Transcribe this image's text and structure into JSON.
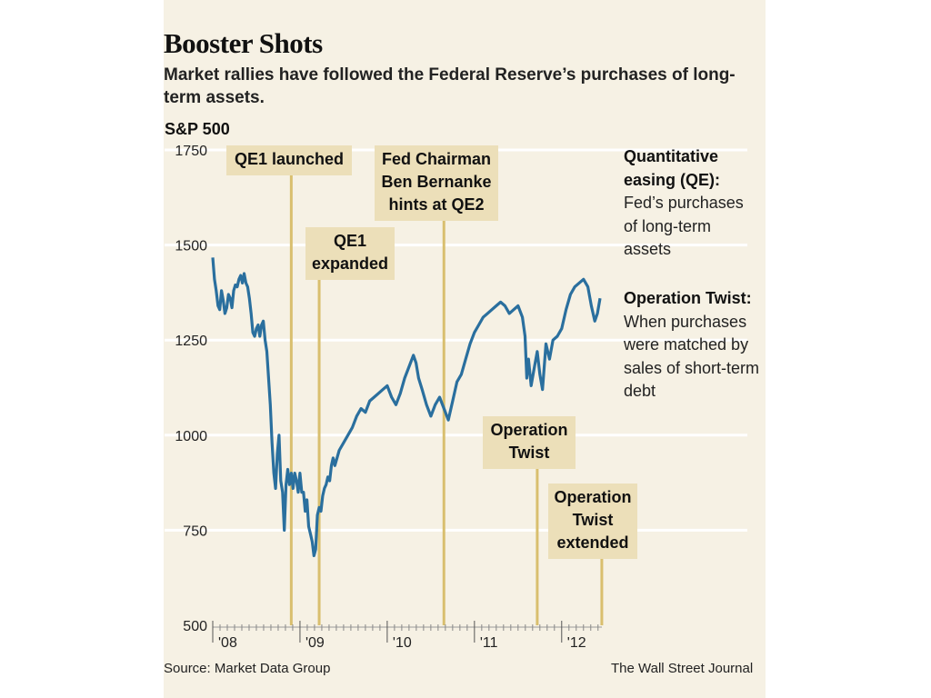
{
  "title": "Booster Shots",
  "subtitle": "Market rallies have followed the Federal Reserve’s purchases of long-term assets.",
  "source": "Source: Market Data Group",
  "credit": "The Wall Street Journal",
  "notes": [
    {
      "bold": "Quantitative easing (QE):",
      "text": " Fed’s purchases of long-term assets"
    },
    {
      "bold": "Operation Twist:",
      "text": " When purchases were matched by sales of short-term debt"
    }
  ],
  "colors": {
    "line": "#2a6f9e",
    "event_line": "#d9bf6e",
    "annotation_bg": "#ecdfb9",
    "background": "#f6f1e4",
    "grid": "#ffffff"
  },
  "chart_data": {
    "type": "line",
    "title": "Booster Shots",
    "ylabel": "S&P 500",
    "ylim": [
      500,
      1750
    ],
    "yticks": [
      500,
      750,
      1000,
      1250,
      1500,
      1750
    ],
    "xlim": [
      2008.0,
      2012.44
    ],
    "xtick_labels": [
      {
        "label": "'08",
        "x": 2008.0
      },
      {
        "label": "'09",
        "x": 2009.0
      },
      {
        "label": "'10",
        "x": 2010.0
      },
      {
        "label": "'11",
        "x": 2011.0
      },
      {
        "label": "'12",
        "x": 2012.0
      }
    ],
    "grid": "horizontal",
    "series": [
      {
        "name": "",
        "x": [
          2008.0,
          2008.02,
          2008.04,
          2008.06,
          2008.08,
          2008.1,
          2008.12,
          2008.14,
          2008.16,
          2008.18,
          2008.2,
          2008.22,
          2008.24,
          2008.26,
          2008.28,
          2008.3,
          2008.32,
          2008.34,
          2008.36,
          2008.38,
          2008.4,
          2008.42,
          2008.44,
          2008.46,
          2008.48,
          2008.5,
          2008.52,
          2008.54,
          2008.56,
          2008.58,
          2008.6,
          2008.62,
          2008.64,
          2008.66,
          2008.68,
          2008.7,
          2008.72,
          2008.74,
          2008.76,
          2008.78,
          2008.8,
          2008.82,
          2008.84,
          2008.86,
          2008.88,
          2008.9,
          2008.92,
          2008.94,
          2008.96,
          2008.98,
          2009.0,
          2009.02,
          2009.04,
          2009.06,
          2009.08,
          2009.1,
          2009.12,
          2009.14,
          2009.16,
          2009.18,
          2009.2,
          2009.22,
          2009.24,
          2009.26,
          2009.28,
          2009.3,
          2009.32,
          2009.34,
          2009.36,
          2009.38,
          2009.4,
          2009.45,
          2009.5,
          2009.55,
          2009.6,
          2009.65,
          2009.7,
          2009.75,
          2009.8,
          2009.85,
          2009.9,
          2009.95,
          2010.0,
          2010.05,
          2010.1,
          2010.15,
          2010.2,
          2010.25,
          2010.3,
          2010.33,
          2010.36,
          2010.4,
          2010.45,
          2010.5,
          2010.55,
          2010.6,
          2010.65,
          2010.7,
          2010.75,
          2010.8,
          2010.85,
          2010.9,
          2010.95,
          2011.0,
          2011.05,
          2011.1,
          2011.15,
          2011.2,
          2011.25,
          2011.3,
          2011.35,
          2011.4,
          2011.45,
          2011.5,
          2011.55,
          2011.58,
          2011.6,
          2011.62,
          2011.65,
          2011.68,
          2011.72,
          2011.75,
          2011.78,
          2011.82,
          2011.86,
          2011.9,
          2011.95,
          2012.0,
          2012.05,
          2012.1,
          2012.15,
          2012.2,
          2012.25,
          2012.3,
          2012.34,
          2012.38,
          2012.41,
          2012.44
        ],
        "y": [
          1467,
          1410,
          1380,
          1340,
          1330,
          1380,
          1355,
          1320,
          1335,
          1370,
          1360,
          1335,
          1380,
          1395,
          1390,
          1410,
          1420,
          1400,
          1425,
          1400,
          1390,
          1360,
          1320,
          1270,
          1260,
          1280,
          1290,
          1260,
          1290,
          1300,
          1250,
          1220,
          1150,
          1080,
          980,
          900,
          860,
          950,
          1000,
          880,
          850,
          750,
          870,
          910,
          870,
          900,
          860,
          900,
          880,
          850,
          900,
          850,
          850,
          800,
          830,
          760,
          740,
          720,
          683,
          700,
          790,
          810,
          800,
          840,
          860,
          870,
          890,
          880,
          920,
          940,
          920,
          960,
          980,
          1000,
          1020,
          1050,
          1070,
          1060,
          1090,
          1100,
          1110,
          1120,
          1130,
          1100,
          1080,
          1110,
          1150,
          1180,
          1210,
          1190,
          1150,
          1120,
          1080,
          1050,
          1080,
          1100,
          1070,
          1040,
          1090,
          1140,
          1160,
          1200,
          1240,
          1270,
          1290,
          1310,
          1320,
          1330,
          1340,
          1350,
          1340,
          1320,
          1330,
          1340,
          1310,
          1260,
          1150,
          1200,
          1130,
          1170,
          1220,
          1160,
          1120,
          1240,
          1200,
          1250,
          1260,
          1280,
          1330,
          1370,
          1390,
          1400,
          1410,
          1390,
          1340,
          1300,
          1320,
          1360
        ]
      }
    ],
    "annotations": [
      {
        "label": [
          "QE1 launched"
        ],
        "x": 2008.9
      },
      {
        "label": [
          "QE1",
          "expanded"
        ],
        "x": 2009.22
      },
      {
        "label": [
          "Fed Chairman",
          "Ben Bernanke",
          "hints at QE2"
        ],
        "x": 2010.65
      },
      {
        "label": [
          "Operation",
          "Twist"
        ],
        "x": 2011.72
      },
      {
        "label": [
          "Operation",
          "Twist",
          "extended"
        ],
        "x": 2012.46
      }
    ]
  }
}
